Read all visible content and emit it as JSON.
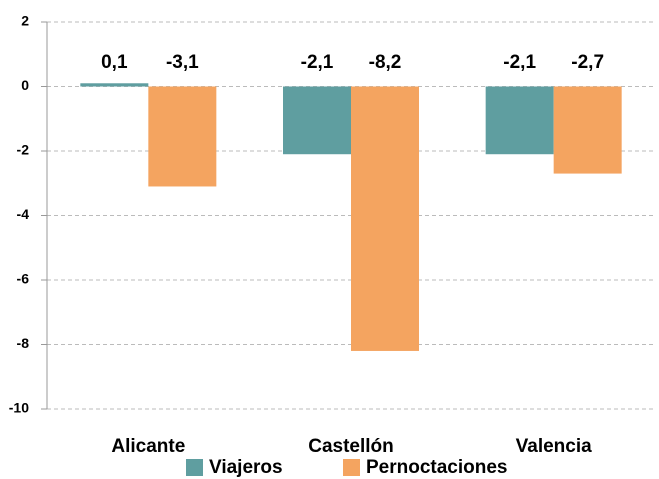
{
  "chart_data": {
    "type": "bar",
    "categories": [
      "Alicante",
      "Castellón",
      "Valencia"
    ],
    "series": [
      {
        "name": "Viajeros",
        "color": "#5f9ea0",
        "values": [
          0.1,
          -2.1,
          -2.1
        ],
        "value_labels": [
          "0,1",
          "-2,1",
          "-2,1"
        ]
      },
      {
        "name": "Pernoctaciones",
        "color": "#f4a460",
        "values": [
          -3.1,
          -8.2,
          -2.7
        ],
        "value_labels": [
          "-3,1",
          "-8,2",
          "-2,7"
        ]
      }
    ],
    "ylim": [
      -10,
      2
    ],
    "yticks": [
      -10,
      -8,
      -6,
      -4,
      -2,
      0,
      2
    ],
    "grid": true,
    "legend": "bottom"
  }
}
